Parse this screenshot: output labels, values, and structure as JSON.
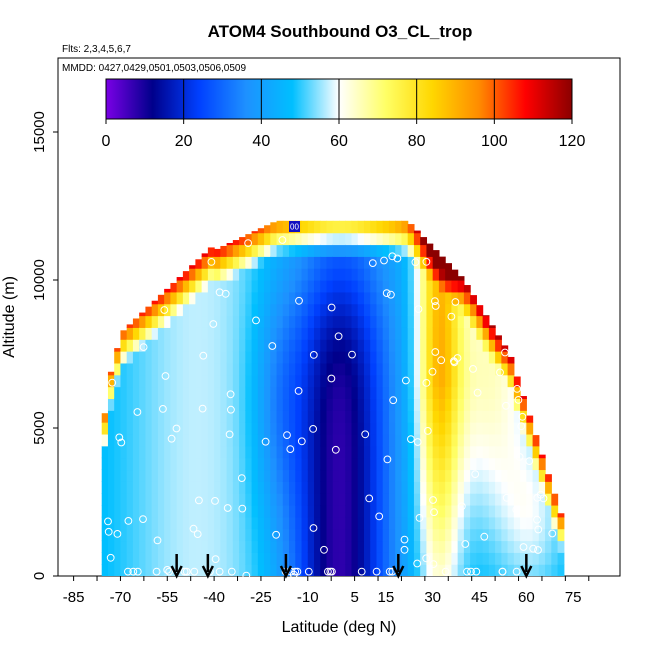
{
  "chart_data": {
    "type": "heatmap",
    "title": "ATOM4 Southbound O3_CL_trop",
    "flights_label": "Flts: 2,3,4,5,6,7",
    "dates_label": "MMDD: 0427,0429,0501,0503,0506,0509",
    "xlabel": "Latitude (deg N)",
    "ylabel": "Altitude (m)",
    "xlim": [
      -90,
      90
    ],
    "ylim": [
      0,
      17500
    ],
    "x_tick_labels": [
      "-85",
      "-70",
      "-55",
      "-40",
      "-25",
      "-10",
      "5",
      "15",
      "30",
      "45",
      "60",
      "75"
    ],
    "y_tick_labels": [
      "0",
      "5000",
      "10000",
      "15000"
    ],
    "colorbar": {
      "range": [
        0,
        120
      ],
      "tick_labels": [
        "0",
        "20",
        "40",
        "60",
        "80",
        "100",
        "120"
      ],
      "stops": [
        "#7a00e6",
        "#00008b",
        "#0040ff",
        "#1e90ff",
        "#00bfff",
        "#ffffff",
        "#ffff66",
        "#ffd700",
        "#ff8c00",
        "#ff0000",
        "#8b0000"
      ]
    },
    "marker_label": "00",
    "arrow_latitudes": [
      -52,
      -42,
      -17,
      19,
      60
    ],
    "field_description": "Ozone curtain: low values (~10-25 ppbv) in tropics -15 to 18 N below 10 km; 40-60 ppbv in southern mid-latitudes; 70-90 ppbv at 25-35 N; high values (90-120) at upper boundary near tropopause."
  }
}
